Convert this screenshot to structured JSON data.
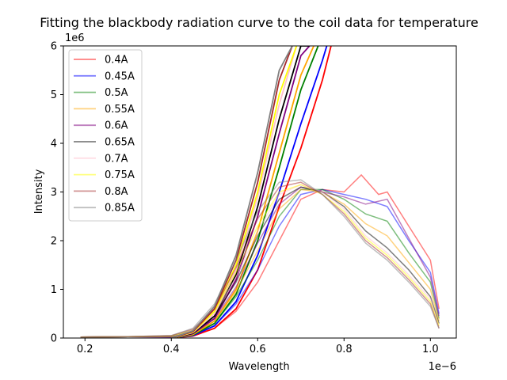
{
  "chart_data": {
    "type": "line",
    "title": "Fitting the blackbody radiation curve to the coil data for temperature",
    "xlabel": "Wavelength",
    "ylabel": "Intensity",
    "x_multiplier_label": "1e−6",
    "y_multiplier_label": "1e6",
    "xlim": [
      0.15,
      1.06
    ],
    "ylim": [
      0,
      6
    ],
    "x_ticks": [
      0.2,
      0.4,
      0.6,
      0.8,
      1.0
    ],
    "x_tick_labels": [
      "0.2",
      "0.4",
      "0.6",
      "0.8",
      "1.0"
    ],
    "y_ticks": [
      0,
      1,
      2,
      3,
      4,
      5,
      6
    ],
    "y_tick_labels": [
      "0",
      "1",
      "2",
      "3",
      "4",
      "5",
      "6"
    ],
    "grid": false,
    "legend_position": "top-left",
    "series": [
      {
        "name": "0.4A",
        "color": "#ff0000",
        "x": [
          0.19,
          0.3,
          0.4,
          0.45,
          0.5,
          0.55,
          0.6,
          0.65,
          0.7,
          0.75,
          0.8,
          0.84,
          0.88,
          0.9,
          0.95,
          1.0,
          1.02
        ],
        "y": [
          0.02,
          0.03,
          0.02,
          0.06,
          0.2,
          0.55,
          1.15,
          2.0,
          2.85,
          3.05,
          3.0,
          3.35,
          2.95,
          3.0,
          2.3,
          1.6,
          0.6
        ],
        "fit_x": [
          0.4,
          0.45,
          0.5,
          0.55,
          0.6,
          0.65,
          0.7,
          0.75,
          0.77
        ],
        "fit_y": [
          0.0,
          0.04,
          0.2,
          0.6,
          1.4,
          2.7,
          3.9,
          5.3,
          6.0
        ]
      },
      {
        "name": "0.45A",
        "color": "#0000ff",
        "x": [
          0.19,
          0.3,
          0.4,
          0.45,
          0.5,
          0.55,
          0.6,
          0.65,
          0.7,
          0.75,
          0.8,
          0.85,
          0.9,
          0.95,
          1.0,
          1.02
        ],
        "y": [
          0.02,
          0.03,
          0.02,
          0.07,
          0.25,
          0.7,
          1.4,
          2.3,
          2.95,
          3.05,
          2.95,
          2.85,
          2.7,
          2.0,
          1.35,
          0.5
        ],
        "fit_x": [
          0.4,
          0.45,
          0.5,
          0.55,
          0.6,
          0.65,
          0.7,
          0.75,
          0.76
        ],
        "fit_y": [
          0.0,
          0.05,
          0.25,
          0.75,
          1.7,
          3.0,
          4.4,
          5.7,
          6.0
        ]
      },
      {
        "name": "0.5A",
        "color": "#008000",
        "x": [
          0.19,
          0.3,
          0.4,
          0.45,
          0.5,
          0.55,
          0.6,
          0.65,
          0.7,
          0.75,
          0.8,
          0.85,
          0.9,
          0.95,
          1.0,
          1.02
        ],
        "y": [
          0.02,
          0.03,
          0.03,
          0.09,
          0.3,
          0.85,
          1.6,
          2.5,
          3.05,
          3.05,
          2.85,
          2.55,
          2.4,
          1.75,
          1.15,
          0.4
        ],
        "fit_x": [
          0.4,
          0.45,
          0.5,
          0.55,
          0.6,
          0.65,
          0.7,
          0.74
        ],
        "fit_y": [
          0.0,
          0.06,
          0.3,
          0.9,
          2.0,
          3.5,
          5.1,
          6.0
        ]
      },
      {
        "name": "0.55A",
        "color": "#ffa500",
        "x": [
          0.19,
          0.3,
          0.4,
          0.45,
          0.5,
          0.55,
          0.6,
          0.65,
          0.7,
          0.75,
          0.8,
          0.85,
          0.9,
          0.95,
          1.0,
          1.02
        ],
        "y": [
          0.02,
          0.03,
          0.03,
          0.1,
          0.35,
          0.95,
          1.8,
          2.65,
          3.05,
          3.0,
          2.75,
          2.35,
          2.1,
          1.55,
          1.0,
          0.35
        ],
        "fit_x": [
          0.4,
          0.45,
          0.5,
          0.55,
          0.6,
          0.65,
          0.7,
          0.73
        ],
        "fit_y": [
          0.0,
          0.07,
          0.35,
          1.0,
          2.2,
          3.8,
          5.4,
          6.0
        ]
      },
      {
        "name": "0.6A",
        "color": "#800080",
        "x": [
          0.19,
          0.3,
          0.4,
          0.45,
          0.5,
          0.55,
          0.6,
          0.65,
          0.7,
          0.75,
          0.8,
          0.85,
          0.9,
          0.95,
          1.0,
          1.02
        ],
        "y": [
          0.02,
          0.03,
          0.03,
          0.12,
          0.4,
          1.05,
          1.95,
          2.75,
          3.1,
          3.0,
          2.9,
          2.75,
          2.85,
          2.05,
          1.25,
          0.45
        ],
        "fit_x": [
          0.4,
          0.45,
          0.5,
          0.55,
          0.6,
          0.65,
          0.7,
          0.72
        ],
        "fit_y": [
          0.0,
          0.09,
          0.4,
          1.2,
          2.5,
          4.2,
          5.8,
          6.0
        ]
      },
      {
        "name": "0.65A",
        "color": "#000000",
        "x": [
          0.19,
          0.3,
          0.4,
          0.45,
          0.5,
          0.55,
          0.6,
          0.65,
          0.7,
          0.75,
          0.8,
          0.85,
          0.9,
          0.95,
          1.0,
          1.02
        ],
        "y": [
          0.02,
          0.03,
          0.04,
          0.14,
          0.45,
          1.15,
          2.1,
          2.85,
          3.1,
          3.0,
          2.7,
          2.2,
          1.85,
          1.4,
          0.85,
          0.3
        ],
        "fit_x": [
          0.4,
          0.45,
          0.5,
          0.55,
          0.6,
          0.65,
          0.7,
          0.72
        ],
        "fit_y": [
          0.0,
          0.1,
          0.45,
          1.3,
          2.7,
          4.5,
          6.0,
          6.0
        ]
      },
      {
        "name": "0.7A",
        "color": "#ffc0cb",
        "x": [
          0.19,
          0.3,
          0.4,
          0.45,
          0.5,
          0.55,
          0.6,
          0.65,
          0.7,
          0.75,
          0.8,
          0.85,
          0.9,
          0.95,
          1.0,
          1.02
        ],
        "y": [
          0.02,
          0.03,
          0.04,
          0.15,
          0.5,
          1.25,
          2.2,
          2.95,
          3.15,
          3.0,
          2.65,
          2.1,
          1.75,
          1.3,
          0.8,
          0.25
        ],
        "fit_x": [
          0.4,
          0.45,
          0.5,
          0.55,
          0.6,
          0.65,
          0.69
        ],
        "fit_y": [
          0.0,
          0.11,
          0.5,
          1.4,
          2.9,
          4.8,
          6.0
        ]
      },
      {
        "name": "0.75A",
        "color": "#ffff00",
        "x": [
          0.19,
          0.3,
          0.4,
          0.45,
          0.5,
          0.55,
          0.6,
          0.65,
          0.7,
          0.75,
          0.8,
          0.85,
          0.9,
          0.95,
          1.0,
          1.02
        ],
        "y": [
          0.02,
          0.03,
          0.04,
          0.16,
          0.55,
          1.35,
          2.3,
          3.0,
          3.15,
          2.95,
          2.6,
          2.05,
          1.7,
          1.25,
          0.75,
          0.25
        ],
        "fit_x": [
          0.4,
          0.45,
          0.5,
          0.55,
          0.6,
          0.65,
          0.69
        ],
        "fit_y": [
          0.0,
          0.12,
          0.55,
          1.5,
          3.0,
          5.0,
          6.0
        ]
      },
      {
        "name": "0.8A",
        "color": "#a52a2a",
        "x": [
          0.19,
          0.3,
          0.4,
          0.45,
          0.5,
          0.55,
          0.6,
          0.65,
          0.7,
          0.75,
          0.8,
          0.85,
          0.9,
          0.95,
          1.0,
          1.02
        ],
        "y": [
          0.02,
          0.03,
          0.05,
          0.18,
          0.6,
          1.45,
          2.45,
          3.1,
          3.2,
          2.95,
          2.55,
          2.0,
          1.65,
          1.2,
          0.7,
          0.2
        ],
        "fit_x": [
          0.4,
          0.45,
          0.5,
          0.55,
          0.6,
          0.65,
          0.68
        ],
        "fit_y": [
          0.0,
          0.13,
          0.6,
          1.6,
          3.2,
          5.3,
          6.0
        ]
      },
      {
        "name": "0.85A",
        "color": "#808080",
        "x": [
          0.19,
          0.3,
          0.4,
          0.45,
          0.5,
          0.55,
          0.6,
          0.65,
          0.7,
          0.75,
          0.8,
          0.85,
          0.9,
          0.95,
          1.0,
          1.02
        ],
        "y": [
          0.02,
          0.03,
          0.05,
          0.2,
          0.7,
          1.6,
          2.6,
          3.2,
          3.25,
          2.95,
          2.5,
          1.95,
          1.6,
          1.15,
          0.65,
          0.2
        ],
        "fit_x": [
          0.4,
          0.45,
          0.5,
          0.55,
          0.6,
          0.65,
          0.68
        ],
        "fit_y": [
          0.0,
          0.15,
          0.65,
          1.7,
          3.4,
          5.5,
          6.0
        ]
      }
    ]
  }
}
